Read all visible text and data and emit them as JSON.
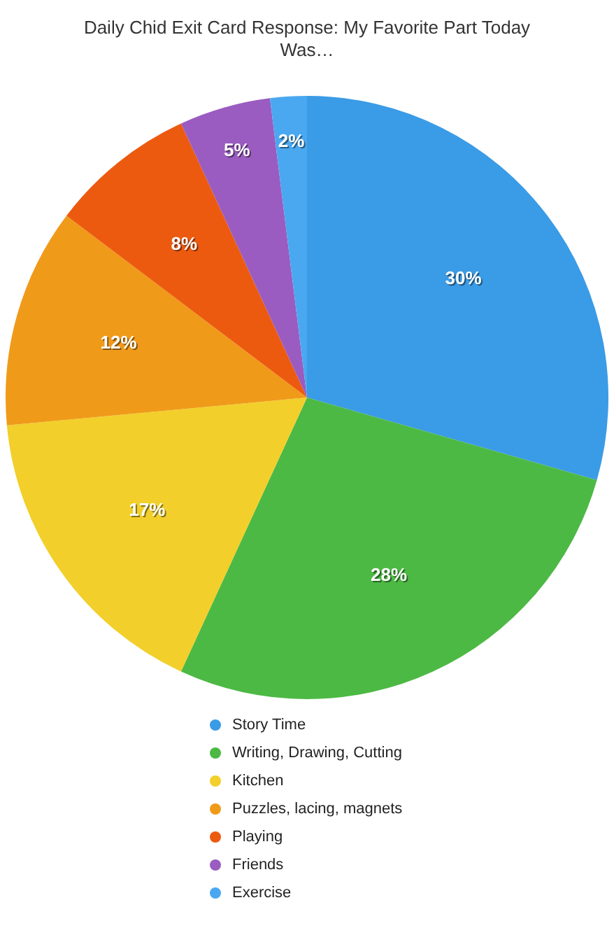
{
  "chart_data": {
    "type": "pie",
    "title": "Daily Chid Exit Card Response: My Favorite Part Today Was…",
    "categories": [
      "Story Time",
      "Writing, Drawing, Cutting",
      "Kitchen",
      "Puzzles, lacing, magnets",
      "Playing",
      "Friends",
      "Exercise"
    ],
    "values": [
      30,
      28,
      17,
      12,
      8,
      5,
      2
    ],
    "colors": [
      "#3a9be6",
      "#4cb944",
      "#f2cf2a",
      "#f09a1a",
      "#ec5a10",
      "#9a5cc0",
      "#4aa8f0"
    ],
    "value_labels": [
      "30%",
      "28%",
      "17%",
      "12%",
      "8%",
      "5%",
      "2%"
    ],
    "legend": "bottom"
  }
}
